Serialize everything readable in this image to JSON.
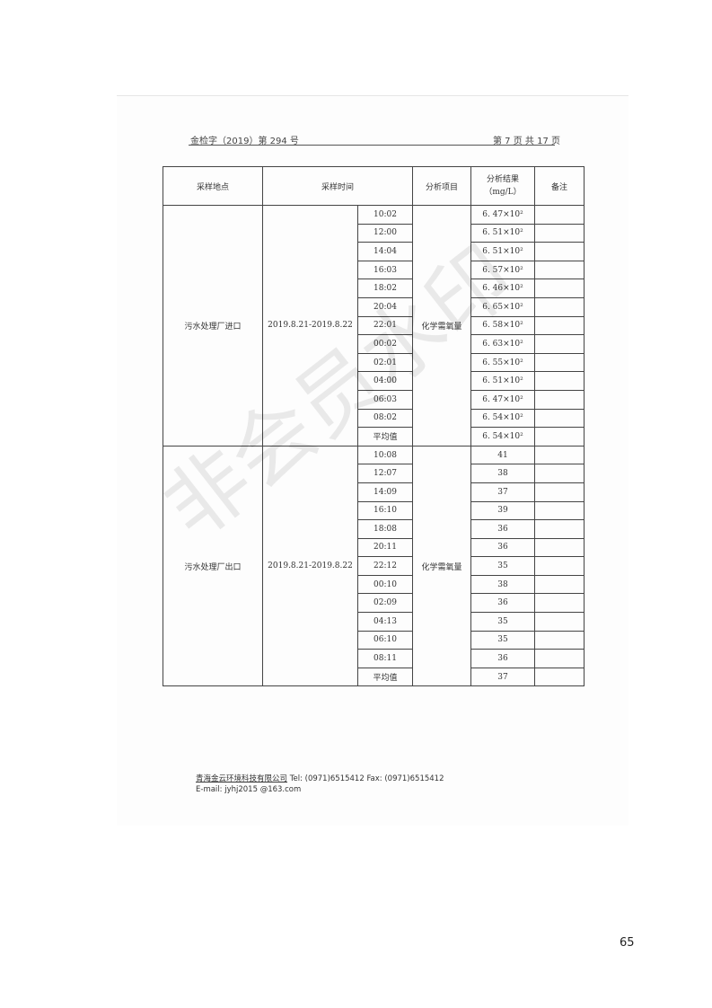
{
  "header": {
    "doc_no": "金检字（2019）第 294 号",
    "page_info": "第 7 页 共 17 页"
  },
  "table": {
    "columns": [
      "采样地点",
      "采样时间",
      "分析项目",
      "分析结果（mg/L）",
      "备注"
    ],
    "groups": [
      {
        "location": "污水处理厂进口",
        "date_range": "2019.8.21-2019.8.22",
        "item": "化学需氧量",
        "rows": [
          [
            "10:02",
            "6. 47×10²"
          ],
          [
            "12:00",
            "6. 51×10²"
          ],
          [
            "14:04",
            "6. 51×10²"
          ],
          [
            "16:03",
            "6. 57×10²"
          ],
          [
            "18:02",
            "6. 46×10²"
          ],
          [
            "20:04",
            "6. 65×10²"
          ],
          [
            "22:01",
            "6. 58×10²"
          ],
          [
            "00:02",
            "6. 63×10²"
          ],
          [
            "02:01",
            "6. 55×10²"
          ],
          [
            "04:00",
            "6. 51×10²"
          ],
          [
            "06:03",
            "6. 47×10²"
          ],
          [
            "08:02",
            "6. 54×10²"
          ],
          [
            "平均值",
            "6. 54×10²"
          ]
        ]
      },
      {
        "location": "污水处理厂出口",
        "date_range": "2019.8.21-2019.8.22",
        "item": "化学需氧量",
        "rows": [
          [
            "10:08",
            "41"
          ],
          [
            "12:07",
            "38"
          ],
          [
            "14:09",
            "37"
          ],
          [
            "16:10",
            "39"
          ],
          [
            "18:08",
            "36"
          ],
          [
            "20:11",
            "36"
          ],
          [
            "22:12",
            "35"
          ],
          [
            "00:10",
            "38"
          ],
          [
            "02:09",
            "36"
          ],
          [
            "04:13",
            "35"
          ],
          [
            "06:10",
            "35"
          ],
          [
            "08:11",
            "36"
          ],
          [
            "平均值",
            "37"
          ]
        ]
      }
    ]
  },
  "footer": {
    "company": "青海金云环境科技有限公司",
    "contact": " Tel:   (0971)6515412    Fax:   (0971)6515412",
    "email": "E-mail:  jyhj2015 @163.com"
  },
  "watermark": "非会员水印",
  "page_number": "65"
}
